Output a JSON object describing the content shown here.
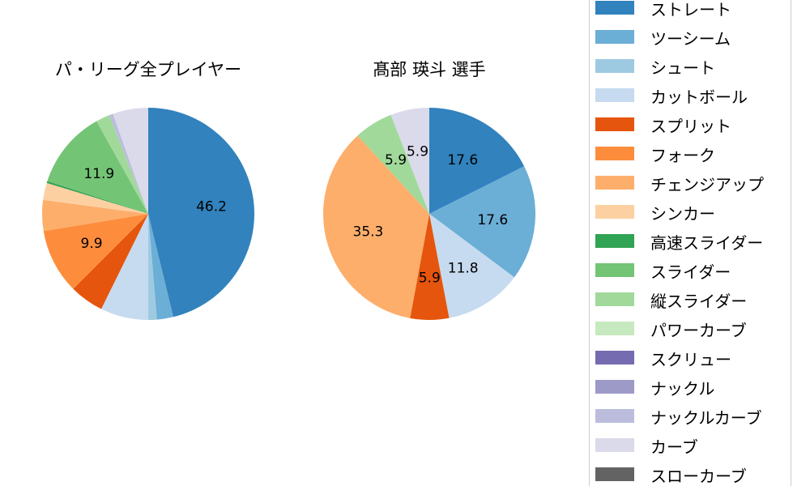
{
  "chart_data": [
    {
      "type": "pie",
      "title": "パ・リーグ全プレイヤー",
      "categories": [
        "ストレート",
        "ツーシーム",
        "シュート",
        "カットボール",
        "スプリット",
        "フォーク",
        "チェンジアップ",
        "シンカー",
        "高速スライダー",
        "スライダー",
        "縦スライダー",
        "ナックルカーブ",
        "カーブ"
      ],
      "values": [
        46.2,
        2.5,
        1.3,
        7.3,
        5.2,
        9.9,
        4.7,
        2.6,
        0.3,
        11.9,
        2.1,
        0.6,
        5.4
      ],
      "data_labels": [
        "46.2",
        null,
        null,
        null,
        null,
        "9.9",
        null,
        null,
        null,
        "11.9",
        null,
        null,
        null
      ],
      "start_angle": 90,
      "direction": "clockwise"
    },
    {
      "type": "pie",
      "title": "髙部 瑛斗  選手",
      "categories": [
        "ストレート",
        "ツーシーム",
        "カットボール",
        "スプリット",
        "チェンジアップ",
        "縦スライダー",
        "カーブ"
      ],
      "values": [
        17.6,
        17.6,
        11.8,
        5.9,
        35.3,
        5.9,
        5.9
      ],
      "data_labels": [
        "17.6",
        "17.6",
        "11.8",
        "5.9",
        "35.3",
        "5.9",
        "5.9"
      ],
      "start_angle": 90,
      "direction": "clockwise"
    }
  ],
  "legend": {
    "placement": "right",
    "items": [
      {
        "label": "ストレート",
        "color": "#3182bd"
      },
      {
        "label": "ツーシーム",
        "color": "#6baed6"
      },
      {
        "label": "シュート",
        "color": "#9ecae1"
      },
      {
        "label": "カットボール",
        "color": "#c6dbef"
      },
      {
        "label": "スプリット",
        "color": "#e6550d"
      },
      {
        "label": "フォーク",
        "color": "#fd8d3c"
      },
      {
        "label": "チェンジアップ",
        "color": "#fdae6b"
      },
      {
        "label": "シンカー",
        "color": "#fdd0a2"
      },
      {
        "label": "高速スライダー",
        "color": "#31a354"
      },
      {
        "label": "スライダー",
        "color": "#74c476"
      },
      {
        "label": "縦スライダー",
        "color": "#a1d99b"
      },
      {
        "label": "パワーカーブ",
        "color": "#c7e9c0"
      },
      {
        "label": "スクリュー",
        "color": "#756bb1"
      },
      {
        "label": "ナックル",
        "color": "#9e9ac8"
      },
      {
        "label": "ナックルカーブ",
        "color": "#bcbddc"
      },
      {
        "label": "カーブ",
        "color": "#dadaeb"
      },
      {
        "label": "スローカーブ",
        "color": "#636363"
      }
    ]
  }
}
